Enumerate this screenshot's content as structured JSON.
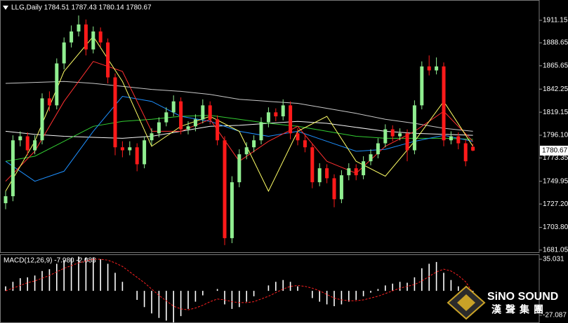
{
  "chart_data": [
    {
      "type": "candlestick",
      "title": "LLG,Daily  1784.51 1787.43 1780.14 1780.67",
      "bull_color": "#90ee90",
      "bear_color": "#ff1a1a",
      "ylim": [
        1678.2,
        1928
      ],
      "yticks": [
        1911.15,
        1888.65,
        1865.65,
        1842.25,
        1819.15,
        {
          "value": 1796.1,
          "label": "1796.10"
        },
        1773.35,
        1749.95,
        {
          "value": 1727.2,
          "label": "1727.20"
        },
        {
          "value": 1703.8,
          "label": "1703.80"
        },
        1681.05
      ],
      "last_price": 1780.67,
      "ohlc": [
        [
          1728,
          1740,
          1722,
          1735
        ],
        [
          1735,
          1796,
          1730,
          1791
        ],
        [
          1791,
          1800,
          1785,
          1795
        ],
        [
          1795,
          1799,
          1776,
          1781
        ],
        [
          1781,
          1796,
          1777,
          1791
        ],
        [
          1791,
          1838,
          1787,
          1833
        ],
        [
          1833,
          1840,
          1820,
          1826
        ],
        [
          1826,
          1873,
          1822,
          1868
        ],
        [
          1868,
          1894,
          1862,
          1889
        ],
        [
          1889,
          1906,
          1884,
          1900
        ],
        [
          1900,
          1916,
          1895,
          1907
        ],
        [
          1907,
          1912,
          1876,
          1882
        ],
        [
          1882,
          1905,
          1878,
          1900
        ],
        [
          1900,
          1904,
          1884,
          1889
        ],
        [
          1889,
          1893,
          1848,
          1854
        ],
        [
          1854,
          1858,
          1776,
          1784
        ],
        [
          1784,
          1790,
          1774,
          1781
        ],
        [
          1781,
          1790,
          1776,
          1784
        ],
        [
          1784,
          1788,
          1760,
          1767
        ],
        [
          1767,
          1795,
          1763,
          1791
        ],
        [
          1791,
          1803,
          1786,
          1798
        ],
        [
          1798,
          1814,
          1794,
          1809
        ],
        [
          1809,
          1824,
          1805,
          1819
        ],
        [
          1819,
          1836,
          1815,
          1830
        ],
        [
          1830,
          1834,
          1797,
          1802
        ],
        [
          1802,
          1810,
          1797,
          1805
        ],
        [
          1805,
          1817,
          1800,
          1812
        ],
        [
          1812,
          1832,
          1808,
          1826
        ],
        [
          1826,
          1830,
          1807,
          1812
        ],
        [
          1812,
          1816,
          1786,
          1791
        ],
        [
          1791,
          1795,
          1686,
          1693
        ],
        [
          1693,
          1755,
          1688,
          1749
        ],
        [
          1749,
          1782,
          1744,
          1777
        ],
        [
          1777,
          1789,
          1772,
          1784
        ],
        [
          1784,
          1796,
          1779,
          1791
        ],
        [
          1791,
          1814,
          1787,
          1809
        ],
        [
          1809,
          1824,
          1804,
          1819
        ],
        [
          1819,
          1823,
          1810,
          1815
        ],
        [
          1815,
          1832,
          1811,
          1826
        ],
        [
          1826,
          1830,
          1792,
          1798
        ],
        [
          1798,
          1803,
          1786,
          1791
        ],
        [
          1791,
          1796,
          1779,
          1784
        ],
        [
          1784,
          1788,
          1743,
          1749
        ],
        [
          1749,
          1768,
          1745,
          1763
        ],
        [
          1763,
          1767,
          1748,
          1753
        ],
        [
          1753,
          1757,
          1724,
          1732
        ],
        [
          1732,
          1761,
          1728,
          1756
        ],
        [
          1756,
          1768,
          1751,
          1763
        ],
        [
          1763,
          1767,
          1751,
          1756
        ],
        [
          1756,
          1775,
          1752,
          1770
        ],
        [
          1770,
          1782,
          1766,
          1777
        ],
        [
          1777,
          1793,
          1773,
          1788
        ],
        [
          1788,
          1807,
          1784,
          1802
        ],
        [
          1802,
          1806,
          1790,
          1795
        ],
        [
          1795,
          1803,
          1791,
          1798
        ],
        [
          1798,
          1802,
          1770,
          1781
        ],
        [
          1781,
          1831,
          1777,
          1826
        ],
        [
          1826,
          1870,
          1822,
          1865
        ],
        [
          1865,
          1876,
          1856,
          1861
        ],
        [
          1861,
          1874,
          1857,
          1865
        ],
        [
          1865,
          1869,
          1785,
          1791
        ],
        [
          1791,
          1800,
          1787,
          1795
        ],
        [
          1795,
          1799,
          1782,
          1788
        ],
        [
          1788,
          1792,
          1765,
          1770
        ],
        [
          1784.51,
          1787.43,
          1780.14,
          1780.67
        ]
      ],
      "lines": [
        {
          "color": "#c8c8c8",
          "x": [
            0,
            4,
            8,
            12,
            16,
            20,
            24,
            28,
            32,
            36,
            40,
            44,
            48,
            52,
            56,
            60,
            64
          ],
          "values": [
            1848,
            1849,
            1850,
            1848,
            1845,
            1842,
            1840,
            1837,
            1832,
            1830,
            1828,
            1823,
            1818,
            1812,
            1808,
            1803,
            1800
          ]
        },
        {
          "color": "#f5f5f5",
          "x": [
            0,
            4,
            8,
            12,
            16,
            20,
            24,
            28,
            32,
            36,
            40,
            44,
            48,
            52,
            56,
            60,
            64
          ],
          "values": [
            1800,
            1797,
            1795,
            1794,
            1793,
            1795,
            1800,
            1805,
            1806,
            1808,
            1810,
            1808,
            1804,
            1800,
            1798,
            1797,
            1796
          ]
        },
        {
          "color": "#32cd32",
          "x": [
            0,
            4,
            8,
            12,
            16,
            20,
            24,
            28,
            32,
            36,
            40,
            44,
            48,
            52,
            56,
            60,
            64
          ],
          "values": [
            1770,
            1775,
            1790,
            1805,
            1810,
            1812,
            1815,
            1816,
            1812,
            1808,
            1805,
            1800,
            1795,
            1793,
            1793,
            1793,
            1792
          ]
        },
        {
          "color": "#1e90ff",
          "x": [
            0,
            4,
            8,
            12,
            16,
            20,
            24,
            28,
            32,
            36,
            40,
            44,
            48,
            52,
            56,
            60,
            64
          ],
          "values": [
            1770,
            1750,
            1760,
            1800,
            1835,
            1830,
            1815,
            1810,
            1800,
            1795,
            1800,
            1790,
            1780,
            1782,
            1790,
            1796,
            1790
          ]
        },
        {
          "color": "#ff3030",
          "x": [
            0,
            4,
            8,
            12,
            16,
            20,
            24,
            28,
            32,
            36,
            40,
            44,
            48,
            52,
            56,
            60,
            64
          ],
          "values": [
            1750,
            1780,
            1830,
            1870,
            1860,
            1800,
            1800,
            1812,
            1770,
            1790,
            1805,
            1770,
            1758,
            1785,
            1800,
            1820,
            1790
          ]
        },
        {
          "color": "#ffff66",
          "x": [
            0,
            4,
            8,
            12,
            16,
            20,
            24,
            28,
            32,
            36,
            40,
            44,
            48,
            52,
            56,
            60,
            64
          ],
          "values": [
            1740,
            1790,
            1860,
            1895,
            1850,
            1785,
            1805,
            1815,
            1800,
            1740,
            1800,
            1815,
            1770,
            1755,
            1790,
            1830,
            1785
          ]
        }
      ]
    },
    {
      "type": "macd",
      "title": "MACD(12,26,9) -7.980 -2.083",
      "ylim": [
        -34.85,
        40.47
      ],
      "yticks": [
        35.031,
        -27.087
      ],
      "histogram": {
        "color": "#ffffff",
        "values": [
          5,
          10,
          14,
          15,
          17,
          22,
          24,
          30,
          34,
          36,
          38,
          37,
          37,
          35,
          30,
          20,
          10,
          0,
          -10,
          -18,
          -25,
          -30,
          -33,
          -35,
          -28,
          -20,
          -12,
          -5,
          0,
          2,
          -15,
          -20,
          -18,
          -12,
          -6,
          0,
          6,
          10,
          12,
          10,
          5,
          0,
          -8,
          -12,
          -15,
          -17,
          -15,
          -12,
          -10,
          -6,
          -2,
          2,
          6,
          8,
          10,
          9,
          15,
          25,
          30,
          32,
          20,
          12,
          5,
          -3,
          -7.98
        ]
      },
      "signal": {
        "color": "#ff2020",
        "values": [
          0,
          3,
          6,
          9,
          11,
          14,
          17,
          21,
          25,
          28,
          31,
          33,
          35,
          35,
          34,
          31,
          27,
          21,
          15,
          9,
          2,
          -5,
          -11,
          -17,
          -20,
          -21,
          -19,
          -16,
          -12,
          -9,
          -10,
          -12,
          -13,
          -13,
          -12,
          -9,
          -6,
          -2,
          2,
          5,
          6,
          5,
          3,
          0,
          -4,
          -8,
          -10,
          -11,
          -11,
          -10,
          -8,
          -6,
          -3,
          0,
          3,
          5,
          7,
          11,
          16,
          21,
          24,
          22,
          17,
          10,
          -2.083
        ]
      }
    }
  ],
  "watermark": {
    "name": "SiNO SOUND",
    "subtitle": "漢聲集團"
  }
}
